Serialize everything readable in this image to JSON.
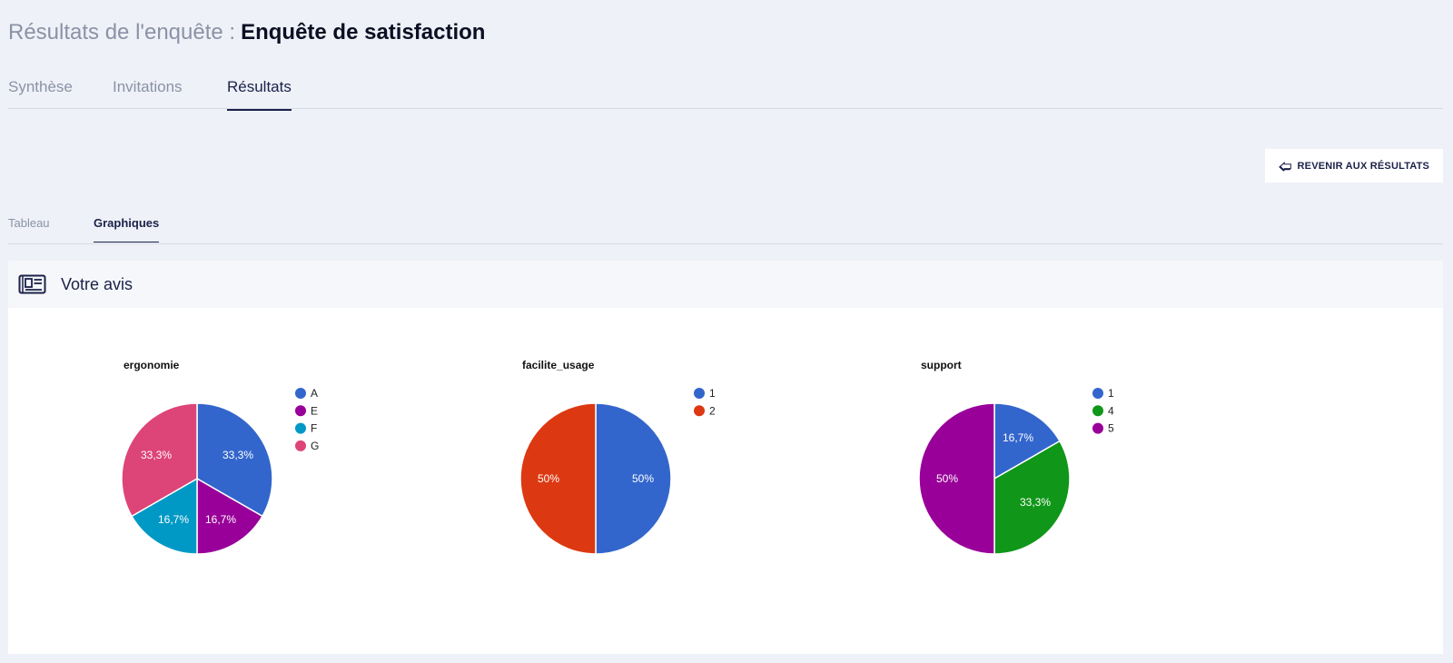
{
  "header": {
    "title_prefix": "Résultats de l'enquête :",
    "survey_name": "Enquête de satisfaction"
  },
  "main_tabs": [
    {
      "label": "Synthèse",
      "active": false
    },
    {
      "label": "Invitations",
      "active": false
    },
    {
      "label": "Résultats",
      "active": true
    }
  ],
  "back_button": {
    "icon": "arrow-left-icon",
    "label": "REVENIR AUX RÉSULTATS"
  },
  "sub_tabs": [
    {
      "label": "Tableau",
      "active": false
    },
    {
      "label": "Graphiques",
      "active": true
    }
  ],
  "panel": {
    "icon": "newspaper-icon",
    "title": "Votre avis"
  },
  "chart_data": [
    {
      "type": "pie",
      "title": "ergonomie",
      "legend_position": "right",
      "slices": [
        {
          "label": "A",
          "value": 33.3,
          "display": "33,3%",
          "color": "#3366cc"
        },
        {
          "label": "E",
          "value": 16.7,
          "display": "16,7%",
          "color": "#990099"
        },
        {
          "label": "F",
          "value": 16.7,
          "display": "16,7%",
          "color": "#0099c6"
        },
        {
          "label": "G",
          "value": 33.3,
          "display": "33,3%",
          "color": "#dd4477"
        }
      ]
    },
    {
      "type": "pie",
      "title": "facilite_usage",
      "legend_position": "right",
      "slices": [
        {
          "label": "1",
          "value": 50,
          "display": "50%",
          "color": "#3366cc"
        },
        {
          "label": "2",
          "value": 50,
          "display": "50%",
          "color": "#dc3912"
        }
      ]
    },
    {
      "type": "pie",
      "title": "support",
      "legend_position": "right",
      "slices": [
        {
          "label": "1",
          "value": 16.7,
          "display": "16,7%",
          "color": "#3366cc"
        },
        {
          "label": "4",
          "value": 33.3,
          "display": "33,3%",
          "color": "#109618"
        },
        {
          "label": "5",
          "value": 50,
          "display": "50%",
          "color": "#990099"
        }
      ]
    }
  ]
}
